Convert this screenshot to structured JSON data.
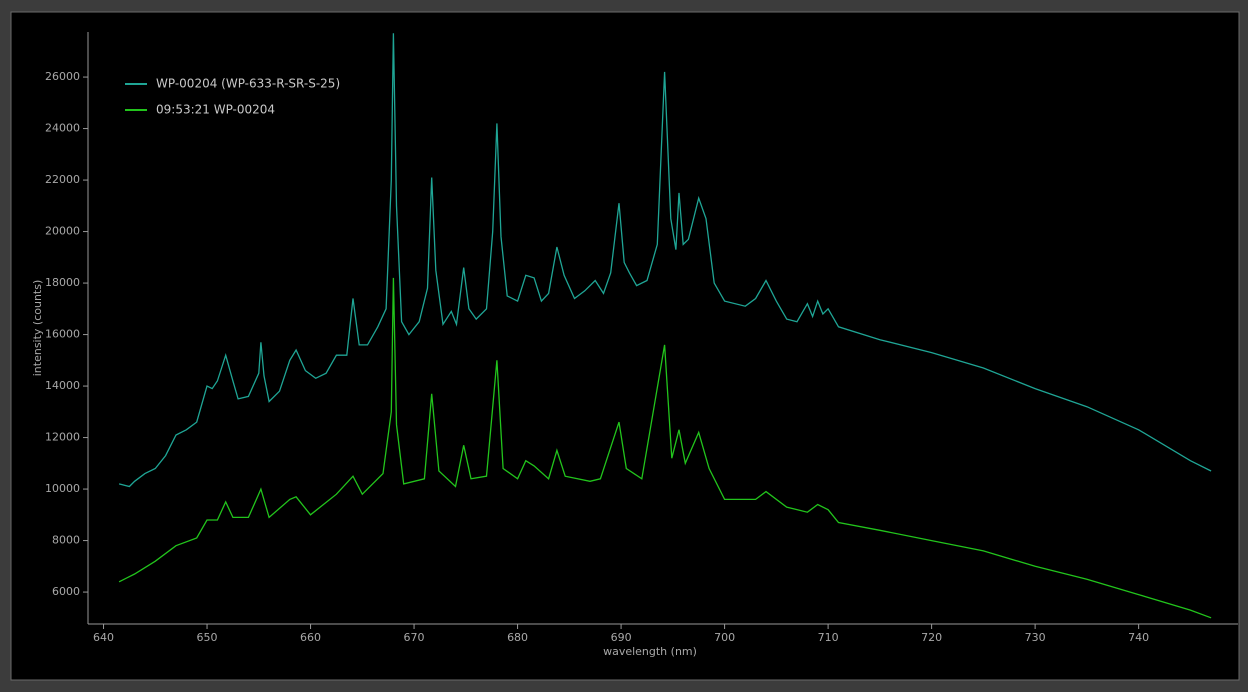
{
  "chart_data": {
    "type": "line",
    "xlabel": "wavelength (nm)",
    "ylabel": "intensity (counts)",
    "xlim": [
      638.5,
      749.6
    ],
    "ylim": [
      4760,
      27750
    ],
    "xticks": [
      640,
      650,
      660,
      670,
      680,
      690,
      700,
      710,
      720,
      730,
      740
    ],
    "yticks": [
      6000,
      8000,
      10000,
      12000,
      14000,
      16000,
      18000,
      20000,
      22000,
      24000,
      26000
    ],
    "legend": "upper left",
    "series": [
      {
        "name": "WP-00204 (WP-633-R-SR-S-25)",
        "color": "#1fa595",
        "x": [
          641.5,
          642.5,
          643,
          644,
          645,
          646,
          647,
          648,
          649,
          650,
          650.5,
          651,
          651.8,
          652.5,
          653,
          654,
          655,
          655.2,
          655.5,
          656,
          657,
          658,
          658.6,
          659.5,
          660.5,
          661.5,
          662.5,
          663.5,
          664.1,
          664.7,
          665.5,
          666.5,
          667.3,
          667.8,
          668,
          668.3,
          668.8,
          669.5,
          670.5,
          671.3,
          671.7,
          672.1,
          672.8,
          673.6,
          674.1,
          674.8,
          675.3,
          676,
          677,
          677.6,
          678,
          678.4,
          679,
          680,
          680.8,
          681.6,
          682.3,
          683,
          683.8,
          684.5,
          685.5,
          686.5,
          687.5,
          688.3,
          689,
          689.8,
          690.3,
          690.8,
          691.5,
          692.5,
          693.5,
          694.2,
          694.8,
          695.3,
          695.6,
          696,
          696.5,
          697.5,
          698.2,
          699,
          700,
          702,
          703,
          704,
          705,
          706,
          707,
          708,
          708.5,
          709,
          709.5,
          710,
          711,
          715,
          720,
          725,
          730,
          735,
          740,
          745,
          747
        ],
        "values": [
          10200,
          10100,
          10300,
          10600,
          10800,
          11300,
          12100,
          12300,
          12600,
          14000,
          13900,
          14200,
          15200,
          14200,
          13500,
          13600,
          14500,
          15700,
          14400,
          13400,
          13800,
          15000,
          15400,
          14600,
          14300,
          14500,
          15200,
          15200,
          17400,
          15600,
          15600,
          16300,
          17000,
          22000,
          27700,
          21000,
          16500,
          16000,
          16500,
          17800,
          22100,
          18500,
          16400,
          16900,
          16400,
          18600,
          17000,
          16600,
          17000,
          20000,
          24200,
          19800,
          17500,
          17300,
          18300,
          18200,
          17300,
          17600,
          19400,
          18300,
          17400,
          17700,
          18100,
          17600,
          18400,
          21100,
          18800,
          18400,
          17900,
          18100,
          19500,
          26200,
          20500,
          19300,
          21500,
          19500,
          19700,
          21300,
          20500,
          18000,
          17300,
          17100,
          17400,
          18100,
          17300,
          16600,
          16500,
          17200,
          16700,
          17300,
          16800,
          17000,
          16300,
          15800,
          15300,
          14700,
          13900,
          13200,
          12300,
          11100,
          10700
        ]
      },
      {
        "name": "09:53:21 WP-00204",
        "color": "#22c41c",
        "x": [
          641.5,
          643,
          645,
          647,
          649,
          650,
          651,
          651.8,
          652.5,
          654,
          655.2,
          656,
          658,
          658.6,
          660,
          662.5,
          664.1,
          665,
          667,
          667.8,
          668,
          668.3,
          669,
          671,
          671.7,
          672.4,
          674,
          674.8,
          675.5,
          677,
          678,
          678.6,
          680,
          680.8,
          681.6,
          683,
          683.8,
          684.6,
          687,
          688,
          689.8,
          690.5,
          692,
          694.2,
          694.9,
          695.6,
          696.2,
          697.5,
          698.5,
          700,
          703,
          704,
          706,
          708,
          709,
          710,
          711,
          715,
          720,
          725,
          730,
          735,
          740,
          745,
          747
        ],
        "values": [
          6400,
          6700,
          7200,
          7800,
          8100,
          8800,
          8800,
          9500,
          8900,
          8900,
          10000,
          8900,
          9600,
          9700,
          9000,
          9800,
          10500,
          9800,
          10600,
          13000,
          18200,
          12500,
          10200,
          10400,
          13700,
          10700,
          10100,
          11700,
          10400,
          10500,
          15000,
          10800,
          10400,
          11100,
          10900,
          10400,
          11500,
          10500,
          10300,
          10400,
          12600,
          10800,
          10400,
          15600,
          11200,
          12300,
          11000,
          12200,
          10800,
          9600,
          9600,
          9900,
          9300,
          9100,
          9400,
          9200,
          8700,
          8400,
          8000,
          7600,
          7000,
          6500,
          5900,
          5300,
          5000
        ]
      }
    ]
  }
}
